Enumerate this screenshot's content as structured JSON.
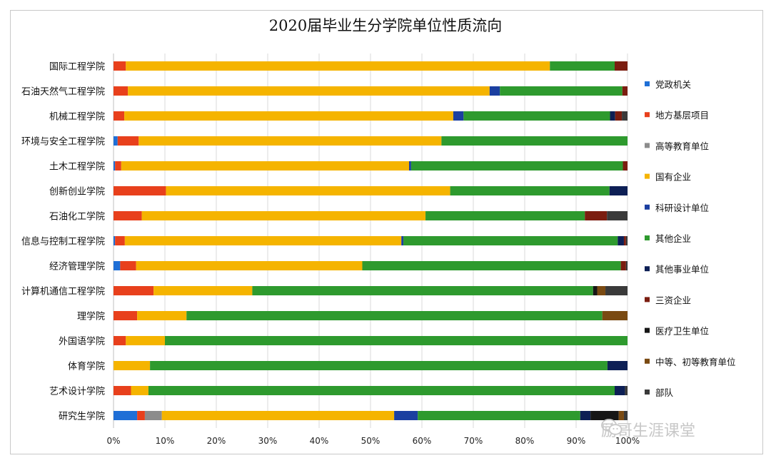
{
  "chart_data": {
    "type": "bar",
    "orientation": "horizontal",
    "stacked": "percent",
    "title": "2020届毕业生分学院单位性质流向",
    "xlim": [
      0,
      1
    ],
    "xticks": [
      "0%",
      "10%",
      "20%",
      "30%",
      "40%",
      "50%",
      "60%",
      "70%",
      "80%",
      "90%",
      "100%"
    ],
    "grid": true,
    "legend_position": "right",
    "categories": [
      "国际工程学院",
      "石油天然气工程学院",
      "机械工程学院",
      "环境与安全工程学院",
      "土木工程学院",
      "创新创业学院",
      "石油化工学院",
      "信息与控制工程学院",
      "经济管理学院",
      "计算机通信工程学院",
      "理学院",
      "外国语学院",
      "体育学院",
      "艺术设计学院",
      "研究生学院"
    ],
    "series": [
      {
        "name": "党政机关",
        "color": "#1f6fd6",
        "values": [
          0,
          0,
          0,
          0.8,
          0.3,
          0,
          0,
          0.3,
          1.3,
          0,
          0,
          0,
          0,
          0,
          4.6
        ]
      },
      {
        "name": "地方基层项目",
        "color": "#e8401c",
        "values": [
          2.4,
          2.8,
          2.1,
          4.1,
          1.2,
          10.2,
          5.5,
          1.9,
          3.1,
          7.8,
          4.6,
          2.4,
          0,
          3.4,
          1.5
        ]
      },
      {
        "name": "高等教育单位",
        "color": "#8c8c8c",
        "values": [
          0,
          0,
          0,
          0,
          0,
          0,
          0,
          0,
          0,
          0,
          0,
          0,
          0,
          0,
          3.3
        ]
      },
      {
        "name": "国有企业",
        "color": "#f5b400",
        "values": [
          82.5,
          70.3,
          64.0,
          58.9,
          56.0,
          55.3,
          55.2,
          53.8,
          44.0,
          19.2,
          9.6,
          7.6,
          7.1,
          3.4,
          45.2
        ]
      },
      {
        "name": "科研设计单位",
        "color": "#1b3fa0",
        "values": [
          0,
          2.0,
          2.0,
          0,
          0.4,
          0,
          0,
          0.4,
          0,
          0,
          0,
          0,
          0,
          0,
          4.6
        ]
      },
      {
        "name": "其他企业",
        "color": "#2e9a2e",
        "values": [
          12.6,
          23.8,
          28.5,
          36.2,
          41.2,
          31.0,
          31.0,
          41.7,
          50.3,
          66.3,
          80.9,
          90.0,
          89.0,
          90.7,
          31.6
        ]
      },
      {
        "name": "其他事业单位",
        "color": "#0d1f55",
        "values": [
          0,
          0,
          1.0,
          0,
          0,
          3.5,
          0,
          1.2,
          0,
          0,
          0,
          0,
          3.9,
          2.0,
          2.0
        ]
      },
      {
        "name": "三资企业",
        "color": "#7b1d10",
        "values": [
          2.5,
          1.0,
          1.3,
          0,
          0.9,
          0,
          4.3,
          0.4,
          1.0,
          0,
          0,
          0,
          0,
          0,
          0
        ]
      },
      {
        "name": "医疗卫生单位",
        "color": "#161616",
        "values": [
          0,
          0,
          0,
          0,
          0,
          0,
          0,
          0,
          0,
          0.8,
          0,
          0,
          0,
          0,
          5.5
        ]
      },
      {
        "name": "中等、初等教育单位",
        "color": "#7a4a12",
        "values": [
          0,
          0,
          0,
          0,
          0,
          0,
          0,
          0,
          0,
          1.6,
          4.9,
          0,
          0,
          0,
          1.0
        ]
      },
      {
        "name": "部队",
        "color": "#3a3a3a",
        "values": [
          0,
          0,
          1.1,
          0,
          0,
          0,
          4.0,
          0.3,
          0.3,
          4.3,
          0,
          0,
          0,
          0.5,
          0.7
        ]
      }
    ]
  },
  "watermark": {
    "text": "励哥生涯课堂",
    "icon": "wechat-icon"
  }
}
